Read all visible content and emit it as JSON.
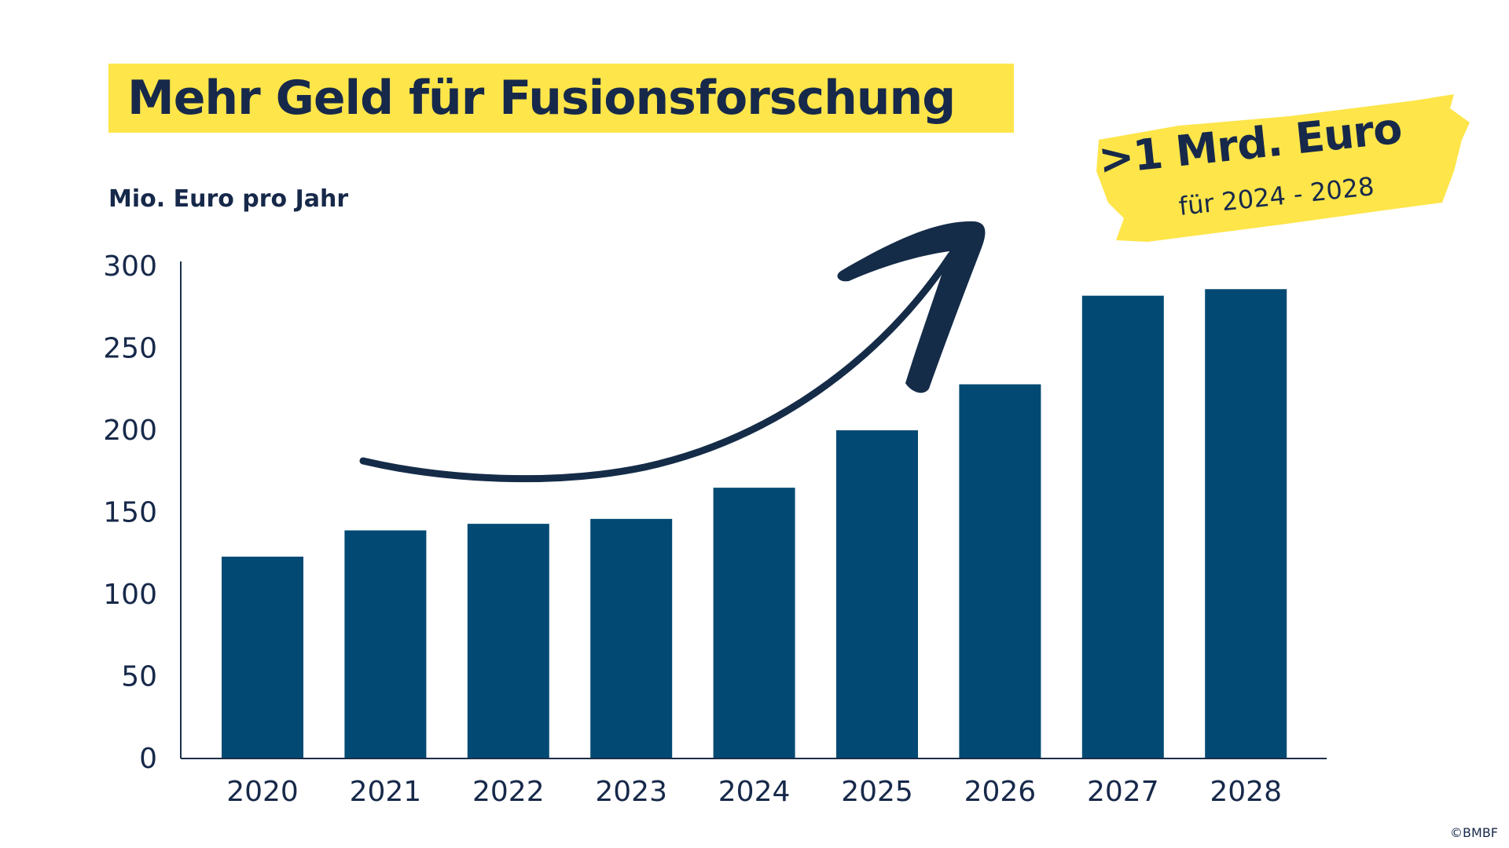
{
  "title": "Mehr Geld für Fusionsforschung",
  "badge": {
    "main": ">1 Mrd. Euro",
    "sub": "für 2024 - 2028"
  },
  "copyright": "©BMBF",
  "colors": {
    "bar": "#024a73",
    "axis": "#1b2e4a",
    "highlight": "#fde54a",
    "text": "#17294a",
    "arrow": "#152c48"
  },
  "chart_data": {
    "type": "bar",
    "ylabel": "Mio. Euro pro Jahr",
    "xlabel": "",
    "categories": [
      "2020",
      "2021",
      "2022",
      "2023",
      "2024",
      "2025",
      "2026",
      "2027",
      "2028"
    ],
    "values": [
      123,
      139,
      143,
      146,
      165,
      200,
      228,
      282,
      286
    ],
    "ylim": [
      0,
      300
    ],
    "yticks": [
      0,
      50,
      100,
      150,
      200,
      250,
      300
    ],
    "grid": false,
    "annotation": "arrow-up-trend"
  }
}
